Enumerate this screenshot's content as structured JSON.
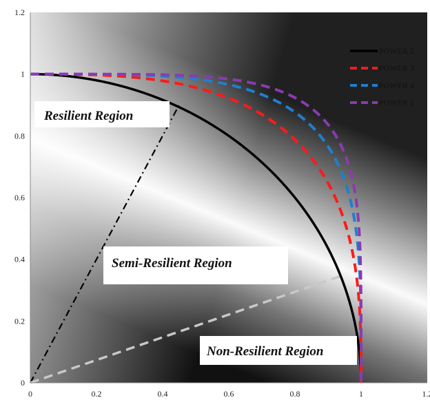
{
  "chart_data": {
    "type": "line",
    "title": "",
    "xlabel": "",
    "ylabel": "",
    "xlim": [
      0,
      1.2
    ],
    "ylim": [
      0,
      1.2
    ],
    "x_ticks": [
      0,
      0.2,
      0.4,
      0.6,
      0.8,
      1,
      1.2
    ],
    "y_ticks": [
      0,
      0.2,
      0.4,
      0.6,
      0.8,
      1,
      1.2
    ],
    "x_tick_labels": [
      "0",
      "0.2",
      "0.4",
      "0.6",
      "0.8",
      "1",
      "1.2"
    ],
    "y_tick_labels": [
      "0",
      "0.2",
      "0.4",
      "0.6",
      "0.8",
      "1",
      "1.2"
    ],
    "grid": false,
    "legend_position": "top-right",
    "series": [
      {
        "name": "POWER 2",
        "exponent": 2,
        "color": "#000000",
        "style": "solid"
      },
      {
        "name": "POWER 3",
        "exponent": 3,
        "color": "#ff1a1a",
        "style": "dashed"
      },
      {
        "name": "POWER 4",
        "exponent": 4,
        "color": "#1e7fd0",
        "style": "dashed"
      },
      {
        "name": "POWER 5",
        "exponent": 5,
        "color": "#8a3bb0",
        "style": "dashed"
      }
    ],
    "guide_lines": [
      {
        "from": [
          0,
          0
        ],
        "to": [
          0.45,
          0.9
        ],
        "color": "#000000",
        "style": "dash-dot"
      },
      {
        "from": [
          0,
          0
        ],
        "to": [
          0.95,
          0.35
        ],
        "color": "#c8c8c8",
        "style": "dashed"
      }
    ],
    "annotations": [
      {
        "text": "Resilient Region",
        "x": 0.05,
        "y": 0.85
      },
      {
        "text": "Semi-Resilient Region",
        "x": 0.25,
        "y": 0.38
      },
      {
        "text": "Non-Resilient Region",
        "x": 0.58,
        "y": 0.1
      }
    ]
  }
}
